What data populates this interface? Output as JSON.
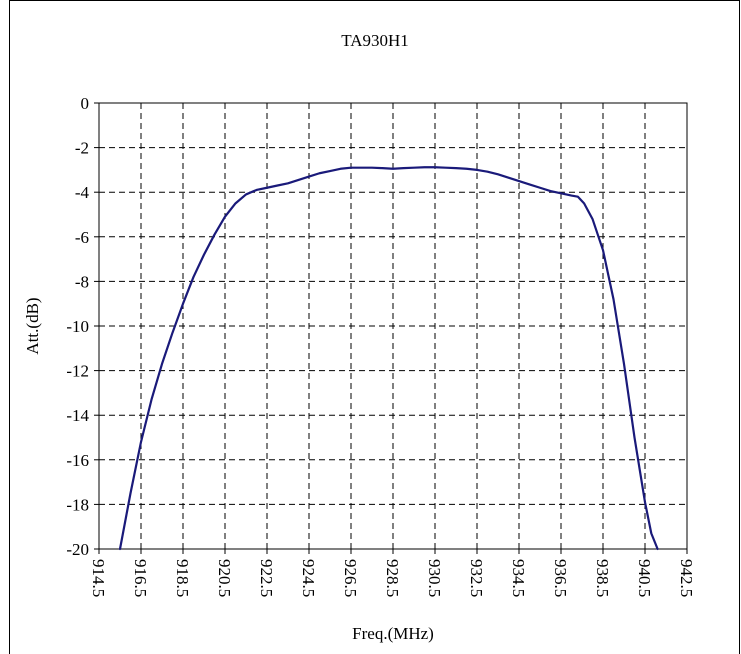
{
  "chart_data": {
    "type": "line",
    "title": "TA930H1",
    "xlabel": "Freq.(MHz)",
    "ylabel": "Att.(dB)",
    "xlim": [
      914.5,
      942.5
    ],
    "ylim": [
      -20,
      0
    ],
    "x_ticks": [
      "914.5",
      "916.5",
      "918.5",
      "920.5",
      "922.5",
      "924.5",
      "926.5",
      "928.5",
      "930.5",
      "932.5",
      "934.5",
      "936.5",
      "938.5",
      "940.5",
      "942.5"
    ],
    "y_ticks": [
      "0",
      "-2",
      "-4",
      "-6",
      "-8",
      "-10",
      "-12",
      "-14",
      "-16",
      "-18",
      "-20"
    ],
    "grid": true,
    "legend": "none",
    "series": [
      {
        "color": "#1a1a7a",
        "x": [
          915.5,
          916.0,
          916.5,
          917.0,
          917.5,
          918.0,
          918.5,
          919.0,
          919.5,
          920.0,
          920.5,
          921.0,
          921.5,
          922.0,
          922.5,
          923.0,
          923.5,
          924.0,
          924.5,
          925.0,
          925.5,
          926.0,
          926.5,
          927.0,
          927.5,
          928.0,
          928.5,
          929.0,
          929.5,
          930.0,
          930.5,
          931.0,
          931.5,
          932.0,
          932.5,
          933.0,
          933.5,
          934.0,
          934.5,
          935.0,
          935.5,
          936.0,
          936.5,
          937.0,
          937.3,
          937.6,
          938.0,
          938.5,
          939.0,
          939.5,
          940.0,
          940.5,
          940.8,
          941.1
        ],
        "y": [
          -20.0,
          -17.5,
          -15.2,
          -13.3,
          -11.7,
          -10.3,
          -9.0,
          -7.8,
          -6.8,
          -5.9,
          -5.1,
          -4.5,
          -4.1,
          -3.9,
          -3.8,
          -3.7,
          -3.6,
          -3.45,
          -3.3,
          -3.15,
          -3.05,
          -2.95,
          -2.9,
          -2.9,
          -2.9,
          -2.92,
          -2.95,
          -2.92,
          -2.9,
          -2.88,
          -2.88,
          -2.9,
          -2.92,
          -2.95,
          -3.0,
          -3.08,
          -3.2,
          -3.35,
          -3.5,
          -3.65,
          -3.8,
          -3.95,
          -4.05,
          -4.15,
          -4.2,
          -4.5,
          -5.2,
          -6.6,
          -8.8,
          -11.7,
          -15.0,
          -17.9,
          -19.3,
          -20.0
        ]
      }
    ]
  }
}
